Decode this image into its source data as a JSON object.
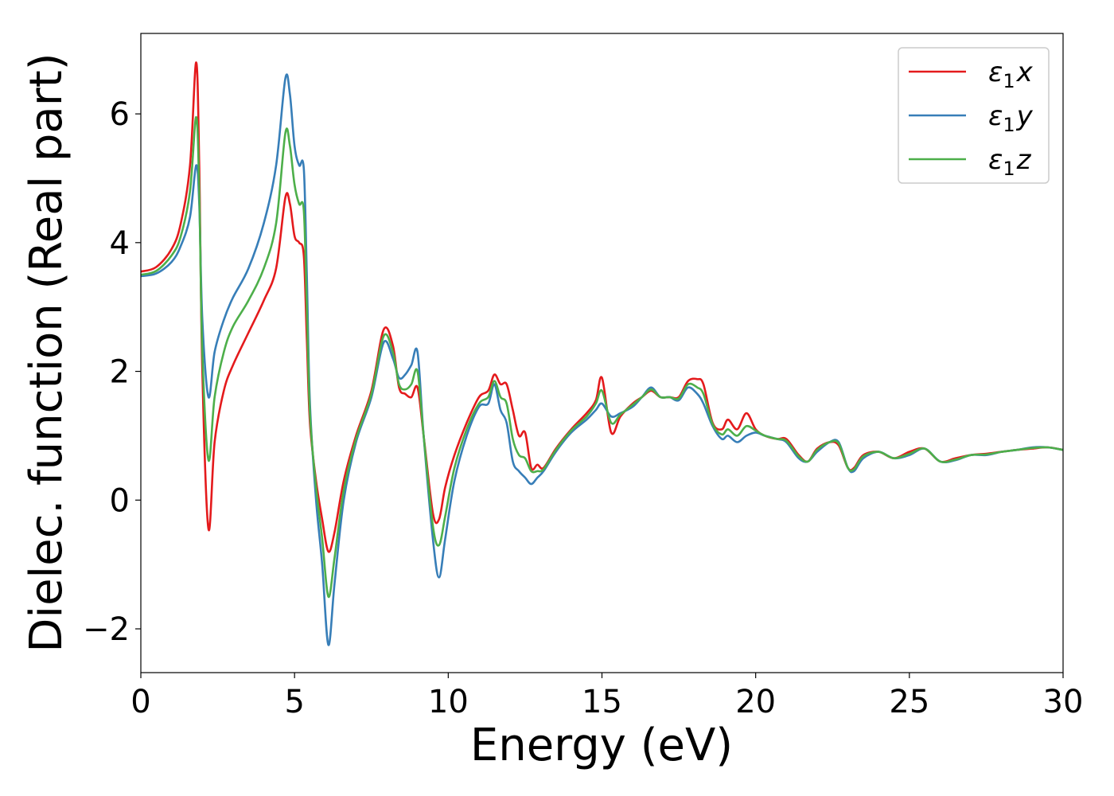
{
  "chart_data": {
    "type": "line",
    "xlabel": "Energy (eV)",
    "ylabel": "Dielec. function (Real part)",
    "xlim": [
      0,
      30
    ],
    "ylim": [
      -2.68,
      7.25
    ],
    "xticks": [
      0,
      5,
      10,
      15,
      20,
      25,
      30
    ],
    "xtick_labels": [
      "0",
      "5",
      "10",
      "15",
      "20",
      "25",
      "30"
    ],
    "yticks": [
      -2,
      0,
      2,
      4,
      6
    ],
    "ytick_labels": [
      "−2",
      "0",
      "2",
      "4",
      "6"
    ],
    "grid": false,
    "legend_position": "top-right",
    "series": [
      {
        "name": "ε₁x",
        "legend_base": "ε",
        "legend_sub": "1",
        "legend_var": "x",
        "color": "#e41a1c",
        "x": [
          0,
          0.5,
          1.0,
          1.3,
          1.6,
          1.8,
          1.9,
          2.0,
          2.2,
          2.4,
          2.7,
          3.0,
          3.5,
          4.0,
          4.4,
          4.7,
          4.85,
          5.0,
          5.15,
          5.3,
          5.4,
          5.5,
          5.7,
          5.9,
          6.1,
          6.3,
          6.6,
          7.0,
          7.5,
          7.9,
          8.2,
          8.4,
          8.6,
          8.8,
          9.0,
          9.2,
          9.5,
          9.7,
          9.9,
          10.2,
          10.6,
          11.0,
          11.3,
          11.5,
          11.7,
          11.9,
          12.1,
          12.3,
          12.5,
          12.7,
          12.9,
          13.1,
          13.5,
          14.0,
          14.5,
          14.8,
          15.0,
          15.3,
          15.6,
          16.0,
          16.3,
          16.6,
          16.9,
          17.2,
          17.5,
          17.8,
          18.1,
          18.3,
          18.6,
          18.9,
          19.1,
          19.4,
          19.7,
          20.0,
          20.3,
          20.7,
          21.0,
          21.4,
          21.7,
          22.0,
          22.4,
          22.7,
          23.0,
          23.2,
          23.5,
          24.0,
          24.5,
          25.0,
          25.5,
          26.0,
          26.5,
          27.0,
          27.5,
          28.0,
          28.5,
          29.0,
          29.5,
          30.0
        ],
        "y": [
          3.55,
          3.62,
          3.9,
          4.3,
          5.2,
          6.8,
          5.2,
          2.0,
          -0.45,
          0.9,
          1.7,
          2.1,
          2.6,
          3.1,
          3.6,
          4.7,
          4.6,
          4.1,
          4.0,
          3.8,
          2.5,
          1.2,
          0.3,
          -0.3,
          -0.8,
          -0.5,
          0.3,
          1.0,
          1.7,
          2.65,
          2.4,
          1.75,
          1.65,
          1.6,
          1.75,
          1.0,
          -0.2,
          -0.3,
          0.2,
          0.7,
          1.2,
          1.6,
          1.7,
          1.95,
          1.8,
          1.8,
          1.4,
          1.0,
          1.05,
          0.5,
          0.55,
          0.5,
          0.8,
          1.1,
          1.35,
          1.55,
          1.9,
          1.05,
          1.3,
          1.5,
          1.6,
          1.7,
          1.6,
          1.6,
          1.6,
          1.85,
          1.88,
          1.8,
          1.2,
          1.1,
          1.25,
          1.1,
          1.35,
          1.1,
          1.0,
          0.95,
          0.95,
          0.7,
          0.6,
          0.8,
          0.9,
          0.85,
          0.5,
          0.5,
          0.7,
          0.75,
          0.65,
          0.75,
          0.8,
          0.6,
          0.65,
          0.7,
          0.72,
          0.75,
          0.78,
          0.8,
          0.82,
          0.78
        ]
      },
      {
        "name": "ε₁y",
        "legend_base": "ε",
        "legend_sub": "1",
        "legend_var": "y",
        "color": "#377eb8",
        "x": [
          0,
          0.5,
          1.0,
          1.3,
          1.6,
          1.8,
          1.9,
          2.0,
          2.2,
          2.4,
          2.7,
          3.0,
          3.5,
          4.0,
          4.4,
          4.7,
          4.85,
          5.0,
          5.15,
          5.3,
          5.4,
          5.5,
          5.7,
          5.9,
          6.1,
          6.3,
          6.6,
          7.0,
          7.5,
          7.9,
          8.2,
          8.4,
          8.6,
          8.8,
          9.0,
          9.2,
          9.5,
          9.7,
          9.9,
          10.2,
          10.6,
          11.0,
          11.3,
          11.5,
          11.7,
          11.9,
          12.1,
          12.3,
          12.5,
          12.7,
          12.9,
          13.1,
          13.5,
          14.0,
          14.5,
          14.8,
          15.0,
          15.3,
          15.6,
          16.0,
          16.3,
          16.6,
          16.9,
          17.2,
          17.5,
          17.8,
          18.1,
          18.3,
          18.6,
          18.9,
          19.1,
          19.4,
          19.7,
          20.0,
          20.3,
          20.7,
          21.0,
          21.4,
          21.7,
          22.0,
          22.4,
          22.7,
          23.0,
          23.2,
          23.5,
          24.0,
          24.5,
          25.0,
          25.5,
          26.0,
          26.5,
          27.0,
          27.5,
          28.0,
          28.5,
          29.0,
          29.5,
          30.0
        ],
        "y": [
          3.48,
          3.52,
          3.7,
          3.95,
          4.4,
          5.2,
          4.6,
          2.8,
          1.6,
          2.3,
          2.8,
          3.15,
          3.6,
          4.3,
          5.2,
          6.55,
          6.3,
          5.5,
          5.2,
          5.15,
          3.5,
          1.5,
          0.0,
          -1.0,
          -2.25,
          -1.3,
          0.0,
          0.9,
          1.6,
          2.45,
          2.2,
          1.9,
          1.95,
          2.1,
          2.3,
          1.0,
          -0.6,
          -1.2,
          -0.6,
          0.3,
          1.0,
          1.45,
          1.5,
          1.8,
          1.4,
          1.2,
          0.6,
          0.45,
          0.35,
          0.25,
          0.35,
          0.45,
          0.75,
          1.05,
          1.25,
          1.4,
          1.5,
          1.3,
          1.35,
          1.45,
          1.6,
          1.75,
          1.6,
          1.6,
          1.55,
          1.75,
          1.65,
          1.5,
          1.15,
          0.95,
          1.0,
          0.9,
          1.0,
          1.05,
          1.0,
          0.95,
          0.9,
          0.65,
          0.6,
          0.75,
          0.9,
          0.9,
          0.5,
          0.45,
          0.65,
          0.75,
          0.65,
          0.7,
          0.8,
          0.6,
          0.62,
          0.7,
          0.7,
          0.75,
          0.78,
          0.82,
          0.82,
          0.78
        ]
      },
      {
        "name": "ε₁z",
        "legend_base": "ε",
        "legend_sub": "1",
        "legend_var": "z",
        "color": "#4daf4a",
        "x": [
          0,
          0.5,
          1.0,
          1.3,
          1.6,
          1.8,
          1.9,
          2.0,
          2.2,
          2.4,
          2.7,
          3.0,
          3.5,
          4.0,
          4.4,
          4.7,
          4.85,
          5.0,
          5.15,
          5.3,
          5.4,
          5.5,
          5.7,
          5.9,
          6.1,
          6.3,
          6.6,
          7.0,
          7.5,
          7.9,
          8.2,
          8.4,
          8.6,
          8.8,
          9.0,
          9.2,
          9.5,
          9.7,
          9.9,
          10.2,
          10.6,
          11.0,
          11.3,
          11.5,
          11.7,
          11.9,
          12.1,
          12.3,
          12.5,
          12.7,
          12.9,
          13.1,
          13.5,
          14.0,
          14.5,
          14.8,
          15.0,
          15.3,
          15.6,
          16.0,
          16.3,
          16.6,
          16.9,
          17.2,
          17.5,
          17.8,
          18.1,
          18.3,
          18.6,
          18.9,
          19.1,
          19.4,
          19.7,
          20.0,
          20.3,
          20.7,
          21.0,
          21.4,
          21.7,
          22.0,
          22.4,
          22.7,
          23.0,
          23.2,
          23.5,
          24.0,
          24.5,
          25.0,
          25.5,
          26.0,
          26.5,
          27.0,
          27.5,
          28.0,
          28.5,
          29.0,
          29.5,
          30.0
        ],
        "y": [
          3.5,
          3.56,
          3.8,
          4.1,
          4.8,
          5.95,
          4.8,
          2.3,
          0.62,
          1.6,
          2.3,
          2.7,
          3.1,
          3.6,
          4.3,
          5.7,
          5.5,
          4.9,
          4.6,
          4.5,
          3.0,
          1.35,
          0.2,
          -0.6,
          -1.5,
          -0.9,
          0.15,
          0.95,
          1.65,
          2.55,
          2.3,
          1.8,
          1.72,
          1.8,
          2.0,
          1.0,
          -0.4,
          -0.7,
          -0.25,
          0.5,
          1.1,
          1.5,
          1.6,
          1.85,
          1.6,
          1.5,
          0.95,
          0.7,
          0.65,
          0.45,
          0.45,
          0.48,
          0.78,
          1.08,
          1.3,
          1.5,
          1.7,
          1.2,
          1.33,
          1.48,
          1.6,
          1.72,
          1.6,
          1.6,
          1.58,
          1.8,
          1.75,
          1.65,
          1.18,
          1.02,
          1.1,
          1.0,
          1.15,
          1.08,
          1.0,
          0.95,
          0.92,
          0.68,
          0.6,
          0.78,
          0.9,
          0.88,
          0.5,
          0.48,
          0.68,
          0.75,
          0.65,
          0.72,
          0.8,
          0.6,
          0.63,
          0.7,
          0.71,
          0.75,
          0.78,
          0.81,
          0.82,
          0.78
        ]
      }
    ]
  }
}
